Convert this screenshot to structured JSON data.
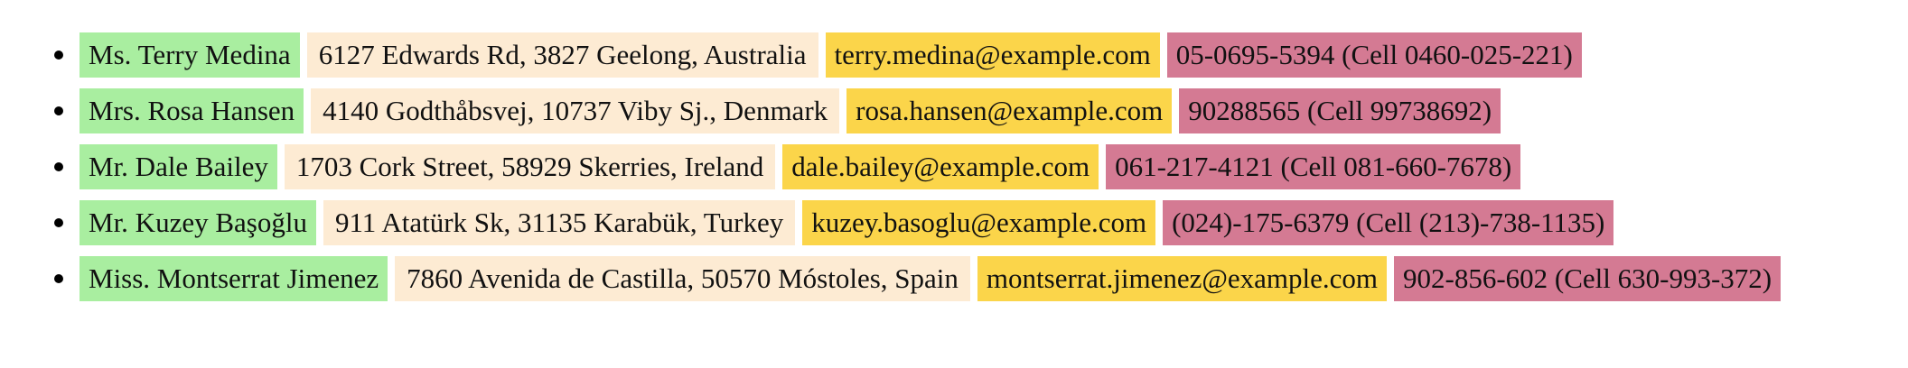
{
  "colors": {
    "name_bg": "#a9eea0",
    "address_bg": "#fdebd3",
    "email_bg": "#fbd54a",
    "phone_bg": "#d47a93"
  },
  "contacts": [
    {
      "name": "Ms. Terry Medina",
      "address": "6127 Edwards Rd, 3827 Geelong, Australia",
      "email": "terry.medina@example.com",
      "phone": "05-0695-5394 (Cell 0460-025-221)"
    },
    {
      "name": "Mrs. Rosa Hansen",
      "address": "4140 Godthåbsvej, 10737 Viby Sj., Denmark",
      "email": "rosa.hansen@example.com",
      "phone": "90288565 (Cell 99738692)"
    },
    {
      "name": "Mr. Dale Bailey",
      "address": "1703 Cork Street, 58929 Skerries, Ireland",
      "email": "dale.bailey@example.com",
      "phone": "061-217-4121 (Cell 081-660-7678)"
    },
    {
      "name": "Mr. Kuzey Başoğlu",
      "address": "911 Atatürk Sk, 31135 Karabük, Turkey",
      "email": "kuzey.basoglu@example.com",
      "phone": "(024)-175-6379 (Cell (213)-738-1135)"
    },
    {
      "name": "Miss. Montserrat Jimenez",
      "address": "7860 Avenida de Castilla, 50570 Móstoles, Spain",
      "email": "montserrat.jimenez@example.com",
      "phone": "902-856-602 (Cell 630-993-372)"
    }
  ]
}
